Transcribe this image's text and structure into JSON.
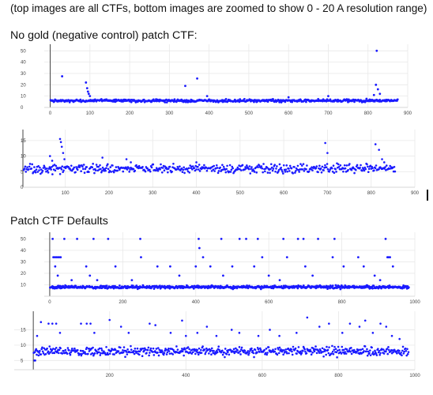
{
  "note": "(top images are all CTFs, bottom images are zoomed to show 0 - 20 A resolution range)",
  "section1_title": "No gold (negative control) patch CTF:",
  "section2_title": "Patch CTF Defaults",
  "colors": {
    "marker": "#1a1aff",
    "grid": "#e8e8e8",
    "axis": "#444444"
  },
  "chart_data": [
    {
      "id": "nogold-full",
      "type": "scatter",
      "xlim": [
        -15,
        900
      ],
      "ylim": [
        0,
        53
      ],
      "xticks": [
        0,
        100,
        200,
        300,
        400,
        500,
        600,
        700,
        800,
        900
      ],
      "yticks": [
        0,
        10,
        20,
        30,
        40,
        50
      ],
      "x_range": [
        1,
        875
      ],
      "baseline": 6,
      "spread": 1.0,
      "outliers": [
        [
          30,
          27.5
        ],
        [
          90,
          22
        ],
        [
          93,
          17
        ],
        [
          95,
          14
        ],
        [
          97,
          12
        ],
        [
          100,
          10
        ],
        [
          340,
          19
        ],
        [
          370,
          25.5
        ],
        [
          395,
          10
        ],
        [
          600,
          9
        ],
        [
          700,
          10
        ],
        [
          815,
          11
        ],
        [
          820,
          20
        ],
        [
          822,
          50
        ],
        [
          825,
          16
        ],
        [
          830,
          12
        ]
      ],
      "grid": true
    },
    {
      "id": "nogold-zoom",
      "type": "scatter",
      "xlim": [
        3,
        900
      ],
      "ylim": [
        0,
        17.5
      ],
      "xticks": [
        100,
        200,
        300,
        400,
        500,
        600,
        700,
        800,
        900
      ],
      "yticks": [
        0,
        5,
        10,
        15
      ],
      "x_range": [
        5,
        855
      ],
      "baseline": 6,
      "spread": 1.2,
      "outliers": [
        [
          65,
          10
        ],
        [
          70,
          8.5
        ],
        [
          88,
          15.5
        ],
        [
          90,
          14.5
        ],
        [
          92,
          13
        ],
        [
          95,
          11
        ],
        [
          98,
          9
        ],
        [
          185,
          9.5
        ],
        [
          240,
          9
        ],
        [
          250,
          8
        ],
        [
          400,
          8
        ],
        [
          695,
          14.2
        ],
        [
          700,
          11
        ],
        [
          810,
          13.8
        ],
        [
          818,
          12
        ],
        [
          825,
          9
        ],
        [
          830,
          8
        ]
      ],
      "grid": true
    },
    {
      "id": "defaults-full",
      "type": "scatter",
      "xlim": [
        -15,
        1000
      ],
      "ylim": [
        0,
        53
      ],
      "xticks": [
        0,
        200,
        400,
        600,
        800,
        1000
      ],
      "yticks": [
        10,
        20,
        30,
        40,
        50
      ],
      "x_range": [
        1,
        985
      ],
      "baseline": 8,
      "spread": 1.1,
      "outliers": [
        [
          8,
          50
        ],
        [
          10,
          34
        ],
        [
          14,
          34
        ],
        [
          18,
          34
        ],
        [
          22,
          34
        ],
        [
          26,
          34
        ],
        [
          30,
          34
        ],
        [
          40,
          50
        ],
        [
          75,
          50
        ],
        [
          120,
          50
        ],
        [
          160,
          50
        ],
        [
          248,
          50
        ],
        [
          408,
          50
        ],
        [
          410,
          42
        ],
        [
          420,
          34
        ],
        [
          470,
          50
        ],
        [
          520,
          50
        ],
        [
          538,
          50
        ],
        [
          570,
          50
        ],
        [
          582,
          34
        ],
        [
          640,
          50
        ],
        [
          650,
          34
        ],
        [
          680,
          50
        ],
        [
          695,
          50
        ],
        [
          735,
          50
        ],
        [
          780,
          50
        ],
        [
          845,
          34
        ],
        [
          920,
          50
        ],
        [
          925,
          34
        ],
        [
          928,
          34
        ],
        [
          932,
          34
        ],
        [
          15,
          26
        ],
        [
          22,
          18
        ],
        [
          60,
          14
        ],
        [
          100,
          26
        ],
        [
          110,
          18
        ],
        [
          130,
          14
        ],
        [
          180,
          26
        ],
        [
          225,
          14
        ],
        [
          250,
          34
        ],
        [
          295,
          26
        ],
        [
          330,
          26
        ],
        [
          355,
          18
        ],
        [
          400,
          26
        ],
        [
          440,
          26
        ],
        [
          475,
          18
        ],
        [
          500,
          26
        ],
        [
          560,
          26
        ],
        [
          600,
          18
        ],
        [
          630,
          14
        ],
        [
          700,
          26
        ],
        [
          720,
          18
        ],
        [
          775,
          34
        ],
        [
          805,
          26
        ],
        [
          860,
          26
        ],
        [
          890,
          18
        ],
        [
          905,
          14
        ],
        [
          940,
          26
        ]
      ],
      "grid": true
    },
    {
      "id": "defaults-zoom",
      "type": "scatter",
      "xlim": [
        -50,
        1000
      ],
      "ylim": [
        2,
        20
      ],
      "xticks": [
        200,
        400,
        600,
        800,
        1000
      ],
      "yticks": [
        5,
        10,
        15
      ],
      "x_range": [
        1,
        985
      ],
      "baseline": 8,
      "spread": 1.2,
      "outliers": [
        [
          10,
          13
        ],
        [
          20,
          17.5
        ],
        [
          40,
          17
        ],
        [
          50,
          17
        ],
        [
          60,
          17
        ],
        [
          70,
          14
        ],
        [
          125,
          17
        ],
        [
          140,
          17
        ],
        [
          150,
          17
        ],
        [
          160,
          14
        ],
        [
          200,
          18.2
        ],
        [
          230,
          16
        ],
        [
          250,
          14
        ],
        [
          305,
          17
        ],
        [
          320,
          16.5
        ],
        [
          360,
          14
        ],
        [
          390,
          18
        ],
        [
          400,
          13
        ],
        [
          430,
          14
        ],
        [
          455,
          16
        ],
        [
          480,
          13
        ],
        [
          520,
          15
        ],
        [
          540,
          14
        ],
        [
          590,
          13
        ],
        [
          620,
          15
        ],
        [
          645,
          13
        ],
        [
          690,
          14
        ],
        [
          718,
          19
        ],
        [
          750,
          16
        ],
        [
          775,
          17
        ],
        [
          810,
          14
        ],
        [
          830,
          17
        ],
        [
          855,
          16
        ],
        [
          870,
          18
        ],
        [
          890,
          14
        ],
        [
          910,
          17
        ],
        [
          925,
          16
        ],
        [
          940,
          13
        ],
        [
          960,
          12
        ],
        [
          3,
          5
        ],
        [
          5,
          5
        ]
      ],
      "grid": true
    }
  ]
}
